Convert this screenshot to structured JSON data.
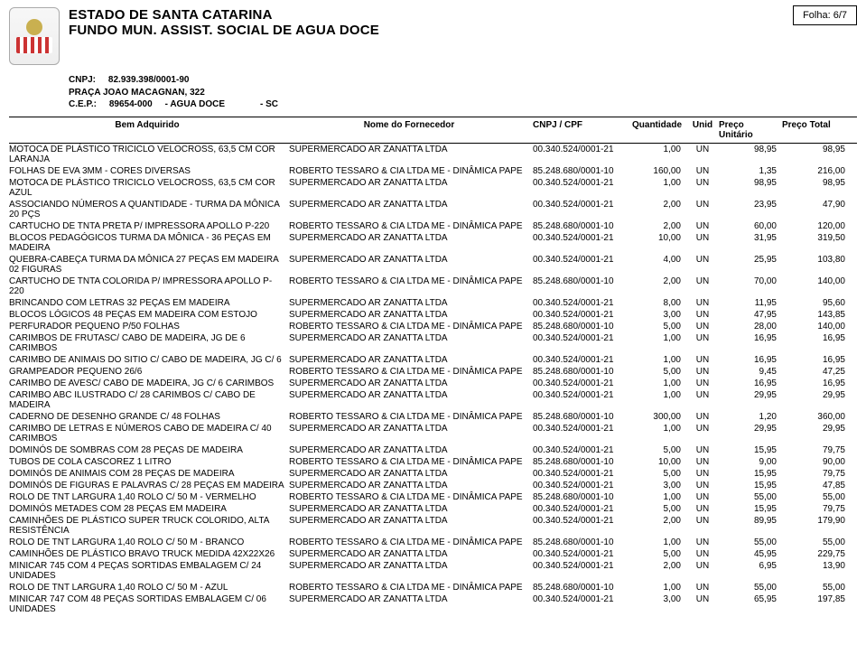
{
  "folha_label": "Folha:",
  "folha_value": "6/7",
  "header": {
    "line1": "ESTADO DE SANTA CATARINA",
    "line2": "FUNDO MUN. ASSIST. SOCIAL DE AGUA DOCE",
    "cnpj_label": "CNPJ:",
    "cnpj": "82.939.398/0001-90",
    "address": "PRAÇA JOAO MACAGNAN, 322",
    "cep_label": "C.E.P.:",
    "cep": "89654-000",
    "city": "- AGUA DOCE",
    "uf": "- SC"
  },
  "columns": {
    "desc": "Bem Adquirido",
    "forn": "Nome do Fornecedor",
    "cnpj": "CNPJ / CPF",
    "qt": "Quantidade",
    "un": "Unid",
    "pu": "Preço Unitário",
    "pt": "Preço Total"
  },
  "rows": [
    {
      "desc": "MOTOCA DE PLÁSTICO TRICICLO VELOCROSS, 63,5 CM COR LARANJA",
      "forn": "SUPERMERCADO AR ZANATTA LTDA",
      "cnpj": "00.340.524/0001-21",
      "qt": "1,00",
      "un": "UN",
      "pu": "98,95",
      "pt": "98,95"
    },
    {
      "desc": "FOLHAS DE EVA 3MM - CORES DIVERSAS",
      "forn": "ROBERTO TESSARO & CIA LTDA ME - DINÂMICA PAPE",
      "cnpj": "85.248.680/0001-10",
      "qt": "160,00",
      "un": "UN",
      "pu": "1,35",
      "pt": "216,00"
    },
    {
      "desc": "MOTOCA DE PLÁSTICO TRICICLO VELOCROSS, 63,5 CM COR AZUL",
      "forn": "SUPERMERCADO AR ZANATTA LTDA",
      "cnpj": "00.340.524/0001-21",
      "qt": "1,00",
      "un": "UN",
      "pu": "98,95",
      "pt": "98,95"
    },
    {
      "desc": "ASSOCIANDO NÚMEROS A QUANTIDADE - TURMA DA MÔNICA 20 PÇS",
      "forn": "SUPERMERCADO AR ZANATTA LTDA",
      "cnpj": "00.340.524/0001-21",
      "qt": "2,00",
      "un": "UN",
      "pu": "23,95",
      "pt": "47,90"
    },
    {
      "desc": "CARTUCHO DE TNTA PRETA P/ IMPRESSORA APOLLO P-220",
      "forn": "ROBERTO TESSARO & CIA LTDA ME - DINÂMICA PAPE",
      "cnpj": "85.248.680/0001-10",
      "qt": "2,00",
      "un": "UN",
      "pu": "60,00",
      "pt": "120,00"
    },
    {
      "desc": "BLOCOS PEDAGÓGICOS TURMA DA MÔNICA - 36 PEÇAS EM MADEIRA",
      "forn": "SUPERMERCADO AR ZANATTA LTDA",
      "cnpj": "00.340.524/0001-21",
      "qt": "10,00",
      "un": "UN",
      "pu": "31,95",
      "pt": "319,50"
    },
    {
      "desc": "QUEBRA-CABEÇA TURMA DA MÔNICA 27 PEÇAS EM MADEIRA 02 FIGURAS",
      "forn": "SUPERMERCADO AR ZANATTA LTDA",
      "cnpj": "00.340.524/0001-21",
      "qt": "4,00",
      "un": "UN",
      "pu": "25,95",
      "pt": "103,80"
    },
    {
      "desc": "CARTUCHO DE TNTA COLORIDA P/ IMPRESSORA APOLLO P-220",
      "forn": "ROBERTO TESSARO & CIA LTDA ME - DINÂMICA PAPE",
      "cnpj": "85.248.680/0001-10",
      "qt": "2,00",
      "un": "UN",
      "pu": "70,00",
      "pt": "140,00"
    },
    {
      "desc": "BRINCANDO COM LETRAS 32 PEÇAS EM MADEIRA",
      "forn": "SUPERMERCADO AR ZANATTA LTDA",
      "cnpj": "00.340.524/0001-21",
      "qt": "8,00",
      "un": "UN",
      "pu": "11,95",
      "pt": "95,60"
    },
    {
      "desc": "BLOCOS LÓGICOS 48 PEÇAS EM MADEIRA COM ESTOJO",
      "forn": "SUPERMERCADO AR ZANATTA LTDA",
      "cnpj": "00.340.524/0001-21",
      "qt": "3,00",
      "un": "UN",
      "pu": "47,95",
      "pt": "143,85"
    },
    {
      "desc": "PERFURADOR PEQUENO P/50 FOLHAS",
      "forn": "ROBERTO TESSARO & CIA LTDA ME - DINÂMICA PAPE",
      "cnpj": "85.248.680/0001-10",
      "qt": "5,00",
      "un": "UN",
      "pu": "28,00",
      "pt": "140,00"
    },
    {
      "desc": "CARIMBOS DE FRUTASC/ CABO DE MADEIRA, JG DE 6 CARIMBOS",
      "forn": "SUPERMERCADO AR ZANATTA LTDA",
      "cnpj": "00.340.524/0001-21",
      "qt": "1,00",
      "un": "UN",
      "pu": "16,95",
      "pt": "16,95"
    },
    {
      "desc": "CARIMBO DE ANIMAIS DO SITIO C/ CABO DE MADEIRA, JG C/ 6",
      "forn": "SUPERMERCADO AR ZANATTA LTDA",
      "cnpj": "00.340.524/0001-21",
      "qt": "1,00",
      "un": "UN",
      "pu": "16,95",
      "pt": "16,95"
    },
    {
      "desc": "GRAMPEADOR PEQUENO 26/6",
      "forn": "ROBERTO TESSARO & CIA LTDA ME - DINÂMICA PAPE",
      "cnpj": "85.248.680/0001-10",
      "qt": "5,00",
      "un": "UN",
      "pu": "9,45",
      "pt": "47,25"
    },
    {
      "desc": "CARIMBO DE AVESC/ CABO DE MADEIRA, JG C/ 6 CARIMBOS",
      "forn": "SUPERMERCADO AR ZANATTA LTDA",
      "cnpj": "00.340.524/0001-21",
      "qt": "1,00",
      "un": "UN",
      "pu": "16,95",
      "pt": "16,95"
    },
    {
      "desc": "CARIMBO ABC ILUSTRADO C/ 28 CARIMBOS C/ CABO DE MADEIRA",
      "forn": "SUPERMERCADO AR ZANATTA LTDA",
      "cnpj": "00.340.524/0001-21",
      "qt": "1,00",
      "un": "UN",
      "pu": "29,95",
      "pt": "29,95"
    },
    {
      "desc": "CADERNO DE DESENHO GRANDE C/ 48 FOLHAS",
      "forn": "ROBERTO TESSARO & CIA LTDA ME - DINÂMICA PAPE",
      "cnpj": "85.248.680/0001-10",
      "qt": "300,00",
      "un": "UN",
      "pu": "1,20",
      "pt": "360,00"
    },
    {
      "desc": "CARIMBO DE LETRAS E NÚMEROS CABO DE MADEIRA C/ 40 CARIMBOS",
      "forn": "SUPERMERCADO AR ZANATTA LTDA",
      "cnpj": "00.340.524/0001-21",
      "qt": "1,00",
      "un": "UN",
      "pu": "29,95",
      "pt": "29,95"
    },
    {
      "desc": "DOMINÓS DE SOMBRAS COM 28 PEÇAS DE MADEIRA",
      "forn": "SUPERMERCADO AR ZANATTA LTDA",
      "cnpj": "00.340.524/0001-21",
      "qt": "5,00",
      "un": "UN",
      "pu": "15,95",
      "pt": "79,75"
    },
    {
      "desc": "TUBOS DE COLA CASCOREZ 1 LITRO",
      "forn": "ROBERTO TESSARO & CIA LTDA ME - DINÂMICA PAPE",
      "cnpj": "85.248.680/0001-10",
      "qt": "10,00",
      "un": "UN",
      "pu": "9,00",
      "pt": "90,00"
    },
    {
      "desc": "DOMINÓS DE ANIMAIS COM 28 PEÇAS DE MADEIRA",
      "forn": "SUPERMERCADO AR ZANATTA LTDA",
      "cnpj": "00.340.524/0001-21",
      "qt": "5,00",
      "un": "UN",
      "pu": "15,95",
      "pt": "79,75"
    },
    {
      "desc": "DOMINÓS DE FIGURAS E PALAVRAS C/ 28 PEÇAS EM MADEIRA",
      "forn": "SUPERMERCADO AR ZANATTA LTDA",
      "cnpj": "00.340.524/0001-21",
      "qt": "3,00",
      "un": "UN",
      "pu": "15,95",
      "pt": "47,85"
    },
    {
      "desc": "ROLO DE TNT LARGURA 1,40 ROLO C/ 50 M - VERMELHO",
      "forn": "ROBERTO TESSARO & CIA LTDA ME - DINÂMICA PAPE",
      "cnpj": "85.248.680/0001-10",
      "qt": "1,00",
      "un": "UN",
      "pu": "55,00",
      "pt": "55,00"
    },
    {
      "desc": "DOMINÓS METADES COM 28 PEÇAS EM MADEIRA",
      "forn": "SUPERMERCADO AR ZANATTA LTDA",
      "cnpj": "00.340.524/0001-21",
      "qt": "5,00",
      "un": "UN",
      "pu": "15,95",
      "pt": "79,75"
    },
    {
      "desc": "CAMINHÕES DE PLÁSTICO SUPER TRUCK COLORIDO, ALTA RESISTÊNCIA",
      "forn": "SUPERMERCADO AR ZANATTA LTDA",
      "cnpj": "00.340.524/0001-21",
      "qt": "2,00",
      "un": "UN",
      "pu": "89,95",
      "pt": "179,90"
    },
    {
      "desc": "ROLO DE TNT LARGURA 1,40 ROLO C/ 50 M - BRANCO",
      "forn": "ROBERTO TESSARO & CIA LTDA ME - DINÂMICA PAPE",
      "cnpj": "85.248.680/0001-10",
      "qt": "1,00",
      "un": "UN",
      "pu": "55,00",
      "pt": "55,00"
    },
    {
      "desc": "CAMINHÕES DE PLÁSTICO BRAVO TRUCK MEDIDA 42X22X26",
      "forn": "SUPERMERCADO AR ZANATTA LTDA",
      "cnpj": "00.340.524/0001-21",
      "qt": "5,00",
      "un": "UN",
      "pu": "45,95",
      "pt": "229,75"
    },
    {
      "desc": "MINICAR 745 COM 4 PEÇAS SORTIDAS EMBALAGEM C/ 24 UNIDADES",
      "forn": "SUPERMERCADO AR ZANATTA LTDA",
      "cnpj": "00.340.524/0001-21",
      "qt": "2,00",
      "un": "UN",
      "pu": "6,95",
      "pt": "13,90"
    },
    {
      "desc": "ROLO DE TNT LARGURA 1,40 ROLO C/ 50 M - AZUL",
      "forn": "ROBERTO TESSARO & CIA LTDA ME - DINÂMICA PAPE",
      "cnpj": "85.248.680/0001-10",
      "qt": "1,00",
      "un": "UN",
      "pu": "55,00",
      "pt": "55,00"
    },
    {
      "desc": "MINICAR 747 COM 48 PEÇAS SORTIDAS EMBALAGEM C/ 06 UNIDADES",
      "forn": "SUPERMERCADO AR ZANATTA LTDA",
      "cnpj": "00.340.524/0001-21",
      "qt": "3,00",
      "un": "UN",
      "pu": "65,95",
      "pt": "197,85"
    }
  ]
}
